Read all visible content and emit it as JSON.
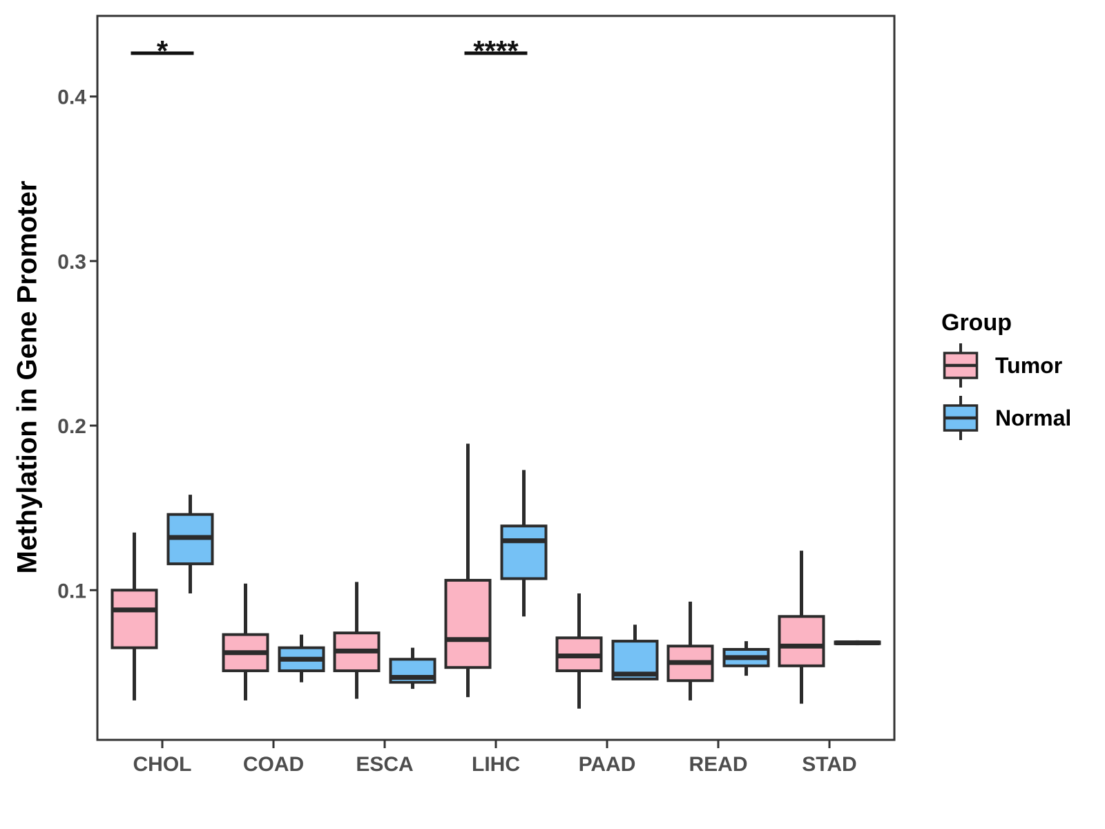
{
  "legend": {
    "title": "Group",
    "items": [
      {
        "label": "Tumor"
      },
      {
        "label": "Normal"
      }
    ]
  },
  "chart_data": {
    "type": "boxplot",
    "title": "",
    "xlabel": "",
    "ylabel": "Methylation in Gene Promoter",
    "categories": [
      "CHOL",
      "COAD",
      "ESCA",
      "LIHC",
      "PAAD",
      "READ",
      "STAD"
    ],
    "groups": [
      {
        "name": "Tumor",
        "color": "#FBB4C3"
      },
      {
        "name": "Normal",
        "color": "#75C1F5"
      }
    ],
    "ylim": [
      0.009,
      0.449
    ],
    "yticks": [
      {
        "value": 0.1,
        "label": "0.1"
      },
      {
        "value": 0.2,
        "label": "0.2"
      },
      {
        "value": 0.3,
        "label": "0.3"
      },
      {
        "value": 0.4,
        "label": "0.4"
      }
    ],
    "grid": false,
    "legend_position": "right",
    "series": [
      {
        "name": "Tumor",
        "boxes": [
          {
            "category": "CHOL",
            "whisker_low": 0.033,
            "q1": 0.065,
            "median": 0.088,
            "q3": 0.1,
            "whisker_high": 0.135
          },
          {
            "category": "COAD",
            "whisker_low": 0.033,
            "q1": 0.051,
            "median": 0.062,
            "q3": 0.073,
            "whisker_high": 0.104
          },
          {
            "category": "ESCA",
            "whisker_low": 0.034,
            "q1": 0.051,
            "median": 0.063,
            "q3": 0.074,
            "whisker_high": 0.105
          },
          {
            "category": "LIHC",
            "whisker_low": 0.035,
            "q1": 0.053,
            "median": 0.07,
            "q3": 0.106,
            "whisker_high": 0.189
          },
          {
            "category": "PAAD",
            "whisker_low": 0.028,
            "q1": 0.051,
            "median": 0.06,
            "q3": 0.071,
            "whisker_high": 0.098
          },
          {
            "category": "READ",
            "whisker_low": 0.033,
            "q1": 0.045,
            "median": 0.056,
            "q3": 0.066,
            "whisker_high": 0.093
          },
          {
            "category": "STAD",
            "whisker_low": 0.031,
            "q1": 0.054,
            "median": 0.066,
            "q3": 0.084,
            "whisker_high": 0.124
          }
        ]
      },
      {
        "name": "Normal",
        "boxes": [
          {
            "category": "CHOL",
            "whisker_low": 0.098,
            "q1": 0.116,
            "median": 0.132,
            "q3": 0.146,
            "whisker_high": 0.158
          },
          {
            "category": "COAD",
            "whisker_low": 0.044,
            "q1": 0.051,
            "median": 0.058,
            "q3": 0.065,
            "whisker_high": 0.073
          },
          {
            "category": "ESCA",
            "whisker_low": 0.04,
            "q1": 0.044,
            "median": 0.047,
            "q3": 0.058,
            "whisker_high": 0.065
          },
          {
            "category": "LIHC",
            "whisker_low": 0.084,
            "q1": 0.107,
            "median": 0.13,
            "q3": 0.139,
            "whisker_high": 0.173
          },
          {
            "category": "PAAD",
            "whisker_low": 0.046,
            "q1": 0.046,
            "median": 0.049,
            "q3": 0.069,
            "whisker_high": 0.079
          },
          {
            "category": "READ",
            "whisker_low": 0.048,
            "q1": 0.054,
            "median": 0.059,
            "q3": 0.064,
            "whisker_high": 0.069
          },
          {
            "category": "STAD",
            "whisker_low": 0.0665,
            "q1": 0.0675,
            "median": 0.068,
            "q3": 0.0685,
            "whisker_high": 0.0695
          }
        ]
      }
    ],
    "significance": [
      {
        "category": "CHOL",
        "label": "*"
      },
      {
        "category": "LIHC",
        "label": "****"
      }
    ],
    "style": {
      "box_border_color": "#2B2B2B",
      "panel_border_color": "#333333",
      "tick_label_color": "#4D4D4D",
      "annotation_color": "#111111",
      "background": "#FFFFFF"
    }
  }
}
